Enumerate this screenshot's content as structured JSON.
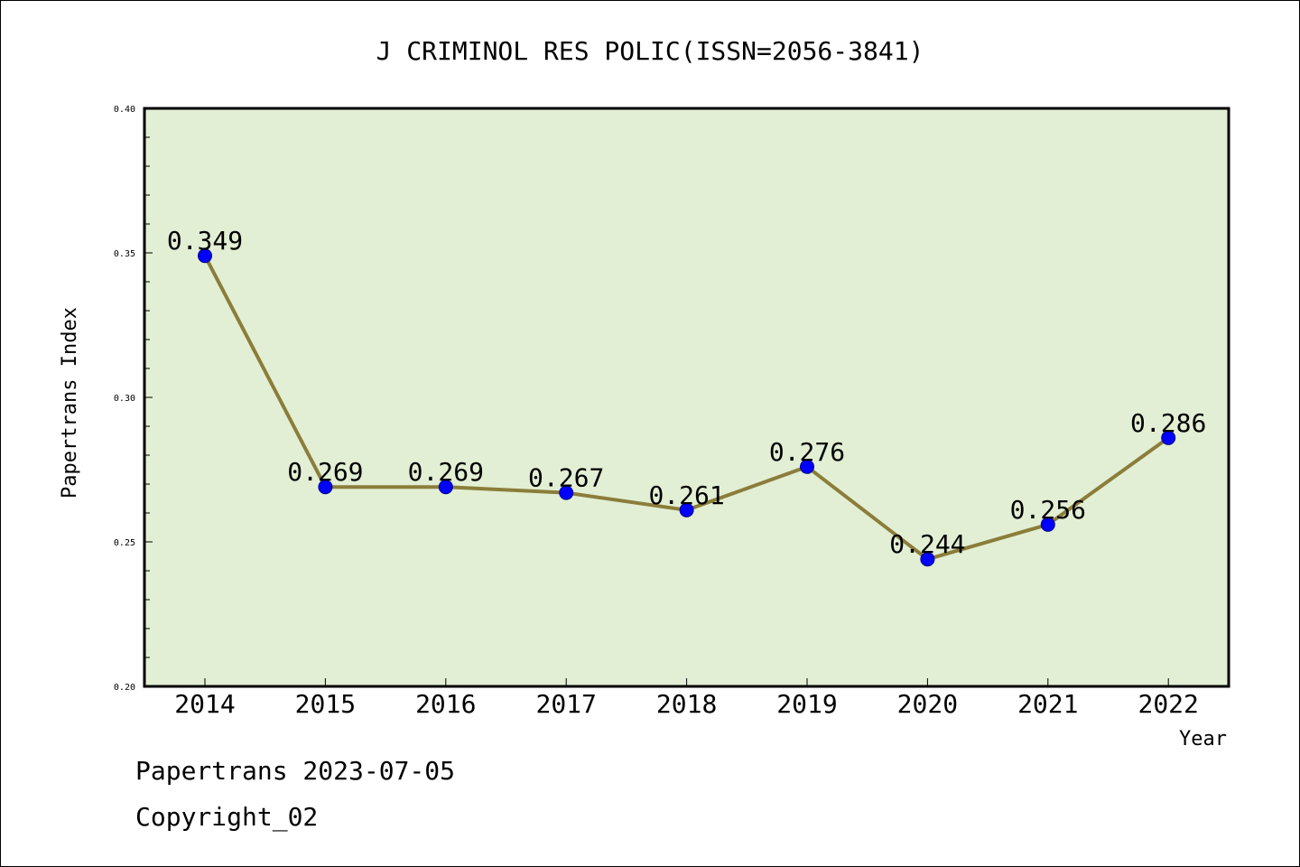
{
  "chart_data": {
    "type": "line",
    "title": "J CRIMINOL RES POLIC(ISSN=2056-3841)",
    "xlabel": "Year",
    "ylabel": "Papertrans Index",
    "categories": [
      "2014",
      "2015",
      "2016",
      "2017",
      "2018",
      "2019",
      "2020",
      "2021",
      "2022"
    ],
    "values": [
      0.349,
      0.269,
      0.269,
      0.267,
      0.261,
      0.276,
      0.244,
      0.256,
      0.286
    ],
    "data_labels": [
      "0.349",
      "0.269",
      "0.269",
      "0.267",
      "0.261",
      "0.276",
      "0.244",
      "0.256",
      "0.286"
    ],
    "ylim": [
      0.2,
      0.4
    ],
    "yticks": [
      "0.20",
      "0.25",
      "0.30",
      "0.35",
      "0.40"
    ],
    "line_color": "#8b7d3a",
    "marker_color": "#0000ff",
    "plot_background": "#e2efd4",
    "grid": false,
    "legend": "none"
  },
  "footer": {
    "line1": "Papertrans 2023-07-05",
    "line2": "Copyright_02"
  }
}
